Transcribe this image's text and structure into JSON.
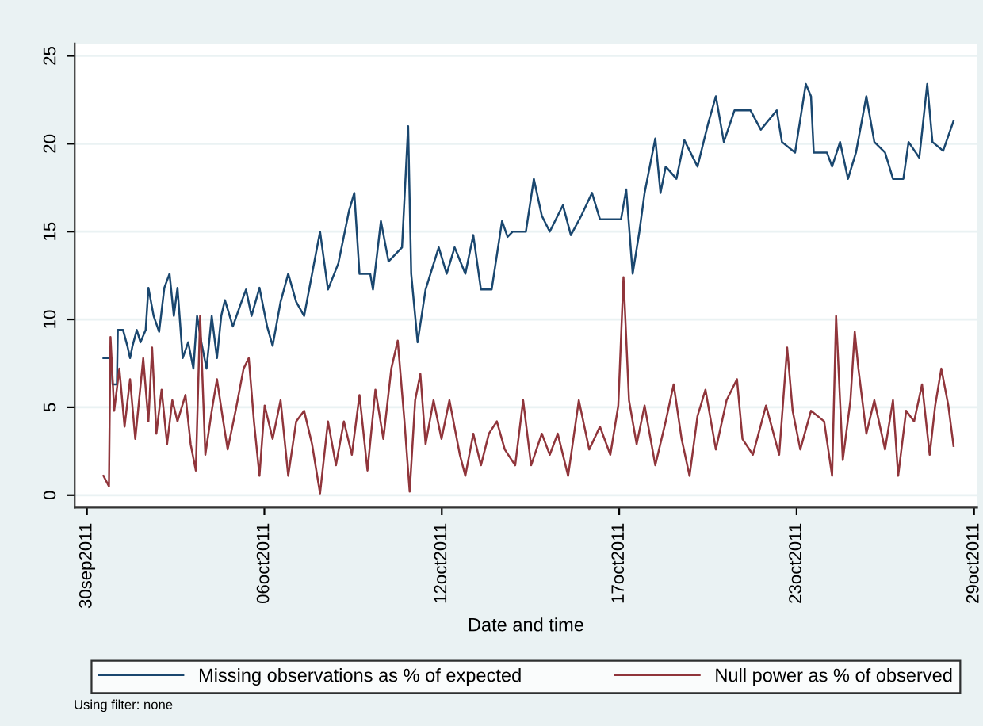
{
  "chart_data": {
    "type": "line",
    "xlabel": "Date and time",
    "annotations": [
      "Using filter: none"
    ],
    "xlim": [
      "2011-09-30T02:24",
      "2011-10-29T14:24"
    ],
    "ylim": [
      -0.7,
      25.7
    ],
    "xticks": [
      {
        "value": "2011-09-30T12:00",
        "label": "30sep2011"
      },
      {
        "value": "2011-10-06T07:12",
        "label": "06oct2011"
      },
      {
        "value": "2011-10-12T02:24",
        "label": "12oct2011"
      },
      {
        "value": "2011-10-17T21:36",
        "label": "17oct2011"
      },
      {
        "value": "2011-10-23T16:48",
        "label": "23oct2011"
      },
      {
        "value": "2011-10-29T12:00",
        "label": "29oct2011"
      }
    ],
    "yticks": [
      0,
      5,
      10,
      15,
      20,
      25
    ],
    "grid": "y",
    "legend": "bottom",
    "marker": "none",
    "line_style": "solid",
    "series": [
      {
        "name": "Missing observations as % of expected",
        "color": "#1a476f",
        "x": [
          "2011-10-01T00:58",
          "2011-10-01T07:12",
          "2011-10-01T08:10",
          "2011-10-01T11:31",
          "2011-10-01T12:14",
          "2011-10-01T16:19",
          "2011-10-01T19:41",
          "2011-10-01T21:50",
          "2011-10-01T23:46",
          "2011-10-02T03:07",
          "2011-10-02T06:00",
          "2011-10-02T10:05",
          "2011-10-02T12:14",
          "2011-10-02T16:19",
          "2011-10-02T20:38",
          "2011-10-03T00:43",
          "2011-10-03T04:48",
          "2011-10-03T08:10",
          "2011-10-03T11:02",
          "2011-10-03T15:07",
          "2011-10-03T19:26",
          "2011-10-03T23:31",
          "2011-10-04T02:24",
          "2011-10-04T05:46",
          "2011-10-04T09:50",
          "2011-10-04T13:55",
          "2011-10-04T18:00",
          "2011-10-04T21:22",
          "2011-10-05T00:14",
          "2011-10-05T06:29",
          "2011-10-05T12:43",
          "2011-10-05T16:48",
          "2011-10-05T21:07",
          "2011-10-06T03:22",
          "2011-10-06T09:22",
          "2011-10-06T13:41",
          "2011-10-06T19:55",
          "2011-10-07T01:55",
          "2011-10-07T08:10",
          "2011-10-07T14:24",
          "2011-10-07T20:38",
          "2011-10-08T02:53",
          "2011-10-08T09:07",
          "2011-10-08T17:17",
          "2011-10-09T01:41",
          "2011-10-09T05:46",
          "2011-10-09T09:50",
          "2011-10-09T18:14",
          "2011-10-09T20:24",
          "2011-10-10T02:38",
          "2011-10-10T08:38",
          "2011-10-10T19:12",
          "2011-10-11T00:00",
          "2011-10-11T02:24",
          "2011-10-11T07:26",
          "2011-10-11T13:41",
          "2011-10-12T00:00",
          "2011-10-12T06:14",
          "2011-10-12T12:29",
          "2011-10-12T20:53",
          "2011-10-13T03:07",
          "2011-10-13T09:07",
          "2011-10-13T17:31",
          "2011-10-14T01:41",
          "2011-10-14T06:00",
          "2011-10-14T10:05",
          "2011-10-14T20:24",
          "2011-10-15T02:38",
          "2011-10-15T08:53",
          "2011-10-15T15:07",
          "2011-10-16T01:26",
          "2011-10-16T07:41",
          "2011-10-16T15:50",
          "2011-10-17T00:14",
          "2011-10-17T06:29",
          "2011-10-17T23:02",
          "2011-10-18T03:07",
          "2011-10-18T08:10",
          "2011-10-18T13:26",
          "2011-10-18T17:31",
          "2011-10-19T01:55",
          "2011-10-19T06:00",
          "2011-10-19T10:05",
          "2011-10-19T18:29",
          "2011-10-20T00:43",
          "2011-10-20T11:02",
          "2011-10-20T19:12",
          "2011-10-21T01:26",
          "2011-10-21T07:41",
          "2011-10-21T16:05",
          "2011-10-22T04:34",
          "2011-10-22T12:43",
          "2011-10-23T01:12",
          "2011-10-23T05:17",
          "2011-10-23T15:36",
          "2011-10-24T00:00",
          "2011-10-24T04:05",
          "2011-10-24T06:14",
          "2011-10-24T16:34",
          "2011-10-24T20:38",
          "2011-10-25T02:53",
          "2011-10-25T09:07",
          "2011-10-25T15:22",
          "2011-10-25T23:31",
          "2011-10-26T05:46",
          "2011-10-26T14:10",
          "2011-10-26T20:24",
          "2011-10-27T04:34",
          "2011-10-27T08:38",
          "2011-10-27T17:02",
          "2011-10-27T23:17",
          "2011-10-28T03:22",
          "2011-10-28T11:46",
          "2011-10-28T19:55"
        ],
        "values": [
          7.8,
          7.8,
          6.3,
          6.3,
          9.4,
          9.4,
          8.5,
          7.8,
          8.5,
          9.4,
          8.7,
          9.4,
          11.8,
          10.2,
          9.3,
          11.8,
          12.6,
          10.2,
          11.8,
          7.8,
          8.7,
          7.2,
          10.2,
          8.7,
          7.2,
          10.2,
          7.8,
          10.2,
          11.1,
          9.6,
          10.9,
          11.7,
          10.2,
          11.8,
          9.6,
          8.5,
          11.0,
          12.6,
          11.0,
          10.2,
          12.6,
          15.0,
          11.7,
          13.2,
          16.2,
          17.2,
          12.6,
          12.6,
          11.7,
          15.6,
          13.3,
          14.1,
          21.0,
          12.6,
          8.7,
          11.7,
          14.1,
          12.6,
          14.1,
          12.6,
          14.8,
          11.7,
          11.7,
          15.6,
          14.7,
          15.0,
          15.0,
          18.0,
          15.9,
          15.0,
          16.5,
          14.8,
          15.9,
          17.2,
          15.7,
          15.7,
          17.4,
          12.6,
          15.0,
          17.2,
          20.3,
          17.2,
          18.7,
          18.0,
          20.2,
          18.7,
          21.1,
          22.7,
          20.1,
          21.9,
          21.9,
          20.8,
          21.9,
          20.1,
          19.5,
          23.4,
          22.7,
          19.5,
          19.5,
          18.7,
          20.1,
          18.0,
          19.5,
          22.7,
          20.1,
          19.5,
          18.0,
          18.0,
          20.1,
          19.2,
          23.4,
          20.1,
          19.6,
          21.3
        ]
      },
      {
        "name": "Null power as % of observed",
        "color": "#90353b",
        "x": [
          "2011-10-01T00:58",
          "2011-10-01T05:17",
          "2011-10-01T06:29",
          "2011-10-01T09:22",
          "2011-10-01T13:26",
          "2011-10-01T17:31",
          "2011-10-01T21:50",
          "2011-10-02T01:55",
          "2011-10-02T08:10",
          "2011-10-02T12:14",
          "2011-10-02T15:07",
          "2011-10-02T18:29",
          "2011-10-02T22:34",
          "2011-10-03T02:53",
          "2011-10-03T06:58",
          "2011-10-03T11:02",
          "2011-10-03T17:17",
          "2011-10-03T21:22",
          "2011-10-04T01:26",
          "2011-10-04T04:48",
          "2011-10-04T08:53",
          "2011-10-04T13:55",
          "2011-10-04T18:00",
          "2011-10-04T22:19",
          "2011-10-05T02:24",
          "2011-10-05T08:38",
          "2011-10-05T14:53",
          "2011-10-05T18:58",
          "2011-10-05T23:02",
          "2011-10-06T03:22",
          "2011-10-06T07:26",
          "2011-10-06T13:41",
          "2011-10-06T19:55",
          "2011-10-07T01:55",
          "2011-10-07T08:10",
          "2011-10-07T14:24",
          "2011-10-07T20:38",
          "2011-10-08T02:53",
          "2011-10-08T09:07",
          "2011-10-08T15:22",
          "2011-10-08T21:36",
          "2011-10-09T03:50",
          "2011-10-09T09:50",
          "2011-10-09T16:05",
          "2011-10-09T22:19",
          "2011-10-10T04:34",
          "2011-10-10T10:48",
          "2011-10-10T15:50",
          "2011-10-10T21:07",
          "2011-10-11T01:12",
          "2011-10-11T05:31",
          "2011-10-11T09:36",
          "2011-10-11T13:41",
          "2011-10-11T19:55",
          "2011-10-12T02:10",
          "2011-10-12T08:24",
          "2011-10-12T16:34",
          "2011-10-12T20:53",
          "2011-10-13T03:07",
          "2011-10-13T09:07",
          "2011-10-13T15:22",
          "2011-10-13T21:36",
          "2011-10-14T03:50",
          "2011-10-14T12:00",
          "2011-10-14T18:14",
          "2011-10-15T00:29",
          "2011-10-15T08:53",
          "2011-10-15T15:07",
          "2011-10-15T21:22",
          "2011-10-16T05:31",
          "2011-10-16T13:55",
          "2011-10-16T22:05",
          "2011-10-17T06:29",
          "2011-10-17T14:38",
          "2011-10-17T20:53",
          "2011-10-18T00:58",
          "2011-10-18T05:17",
          "2011-10-18T11:17",
          "2011-10-18T17:31",
          "2011-10-19T01:55",
          "2011-10-19T10:05",
          "2011-10-19T16:19",
          "2011-10-19T22:34",
          "2011-10-20T04:48",
          "2011-10-20T11:02",
          "2011-10-20T17:17",
          "2011-10-21T01:26",
          "2011-10-21T09:50",
          "2011-10-21T18:00",
          "2011-10-21T22:19",
          "2011-10-22T06:29",
          "2011-10-22T16:48",
          "2011-10-23T03:07",
          "2011-10-23T09:22",
          "2011-10-23T13:41",
          "2011-10-23T19:41",
          "2011-10-24T04:05",
          "2011-10-24T14:24",
          "2011-10-24T20:38",
          "2011-10-24T23:46",
          "2011-10-25T05:02",
          "2011-10-25T11:02",
          "2011-10-25T14:24",
          "2011-10-25T17:17",
          "2011-10-25T23:31",
          "2011-10-26T05:46",
          "2011-10-26T14:10",
          "2011-10-26T20:24",
          "2011-10-27T00:29",
          "2011-10-27T06:43",
          "2011-10-27T12:58",
          "2011-10-27T19:12",
          "2011-10-28T01:12",
          "2011-10-28T05:31",
          "2011-10-28T10:19",
          "2011-10-28T15:50",
          "2011-10-28T19:55"
        ],
        "values": [
          1.1,
          0.5,
          9.0,
          4.8,
          7.2,
          3.9,
          6.6,
          3.2,
          7.8,
          4.2,
          8.4,
          3.5,
          6.0,
          2.9,
          5.4,
          4.2,
          5.7,
          2.9,
          1.4,
          10.2,
          2.3,
          4.8,
          6.6,
          4.5,
          2.6,
          4.8,
          7.2,
          7.8,
          4.2,
          1.1,
          5.1,
          3.2,
          5.4,
          1.1,
          4.2,
          4.8,
          2.9,
          0.1,
          4.2,
          1.7,
          4.2,
          2.3,
          5.7,
          1.4,
          6.0,
          3.2,
          7.2,
          8.8,
          4.2,
          0.2,
          5.4,
          6.9,
          2.9,
          5.4,
          3.2,
          5.4,
          2.3,
          1.1,
          3.5,
          1.7,
          3.5,
          4.2,
          2.6,
          1.7,
          5.4,
          1.7,
          3.5,
          2.3,
          3.5,
          1.1,
          5.4,
          2.6,
          3.9,
          2.3,
          5.1,
          12.4,
          5.4,
          2.9,
          5.1,
          1.7,
          4.2,
          6.3,
          3.2,
          1.1,
          4.5,
          6.0,
          2.6,
          5.4,
          6.6,
          3.2,
          2.3,
          5.1,
          2.3,
          8.4,
          4.8,
          2.6,
          4.8,
          4.2,
          1.1,
          10.2,
          2.0,
          5.4,
          9.3,
          7.2,
          3.5,
          5.4,
          2.6,
          5.4,
          1.1,
          4.8,
          4.2,
          6.3,
          2.3,
          5.1,
          7.2,
          5.1,
          2.8
        ]
      }
    ]
  }
}
